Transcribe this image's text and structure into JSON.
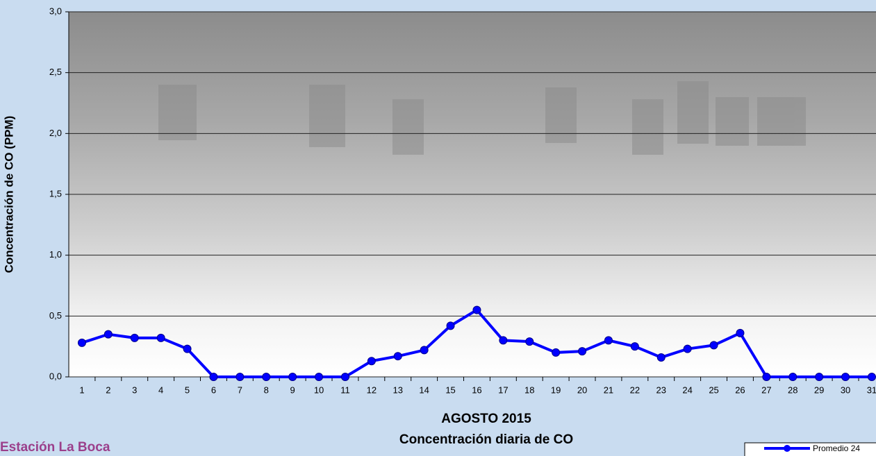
{
  "chart_data": {
    "type": "line",
    "title": "AGOSTO 2015",
    "subtitle": "Concentración diaria de CO",
    "y_label": "Concentración de CO (PPM)",
    "station": "Estación La Boca",
    "categories": [
      "1",
      "2",
      "3",
      "4",
      "5",
      "6",
      "7",
      "8",
      "9",
      "10",
      "11",
      "12",
      "13",
      "14",
      "15",
      "16",
      "17",
      "18",
      "19",
      "20",
      "21",
      "22",
      "23",
      "24",
      "25",
      "26",
      "27",
      "28",
      "29",
      "30",
      "31"
    ],
    "series": [
      {
        "name": "Promedio 24",
        "color": "#0000ff",
        "values": [
          0.28,
          0.35,
          0.32,
          0.32,
          0.23,
          0,
          0,
          0,
          0,
          0,
          0,
          0.13,
          0.17,
          0.22,
          0.42,
          0.55,
          0.3,
          0.29,
          0.2,
          0.21,
          0.3,
          0.25,
          0.16,
          0.23,
          0.26,
          0.36,
          0,
          0,
          0,
          0,
          0
        ]
      }
    ],
    "ylim": [
      0,
      3
    ],
    "yticks": [
      {
        "value": 0,
        "label": "0,0"
      },
      {
        "value": 0.5,
        "label": "0,5"
      },
      {
        "value": 1,
        "label": "1,0"
      },
      {
        "value": 1.5,
        "label": "1,5"
      },
      {
        "value": 2,
        "label": "2,0"
      },
      {
        "value": 2.5,
        "label": "2,5"
      },
      {
        "value": 3,
        "label": "3,0"
      }
    ],
    "grid": true
  }
}
